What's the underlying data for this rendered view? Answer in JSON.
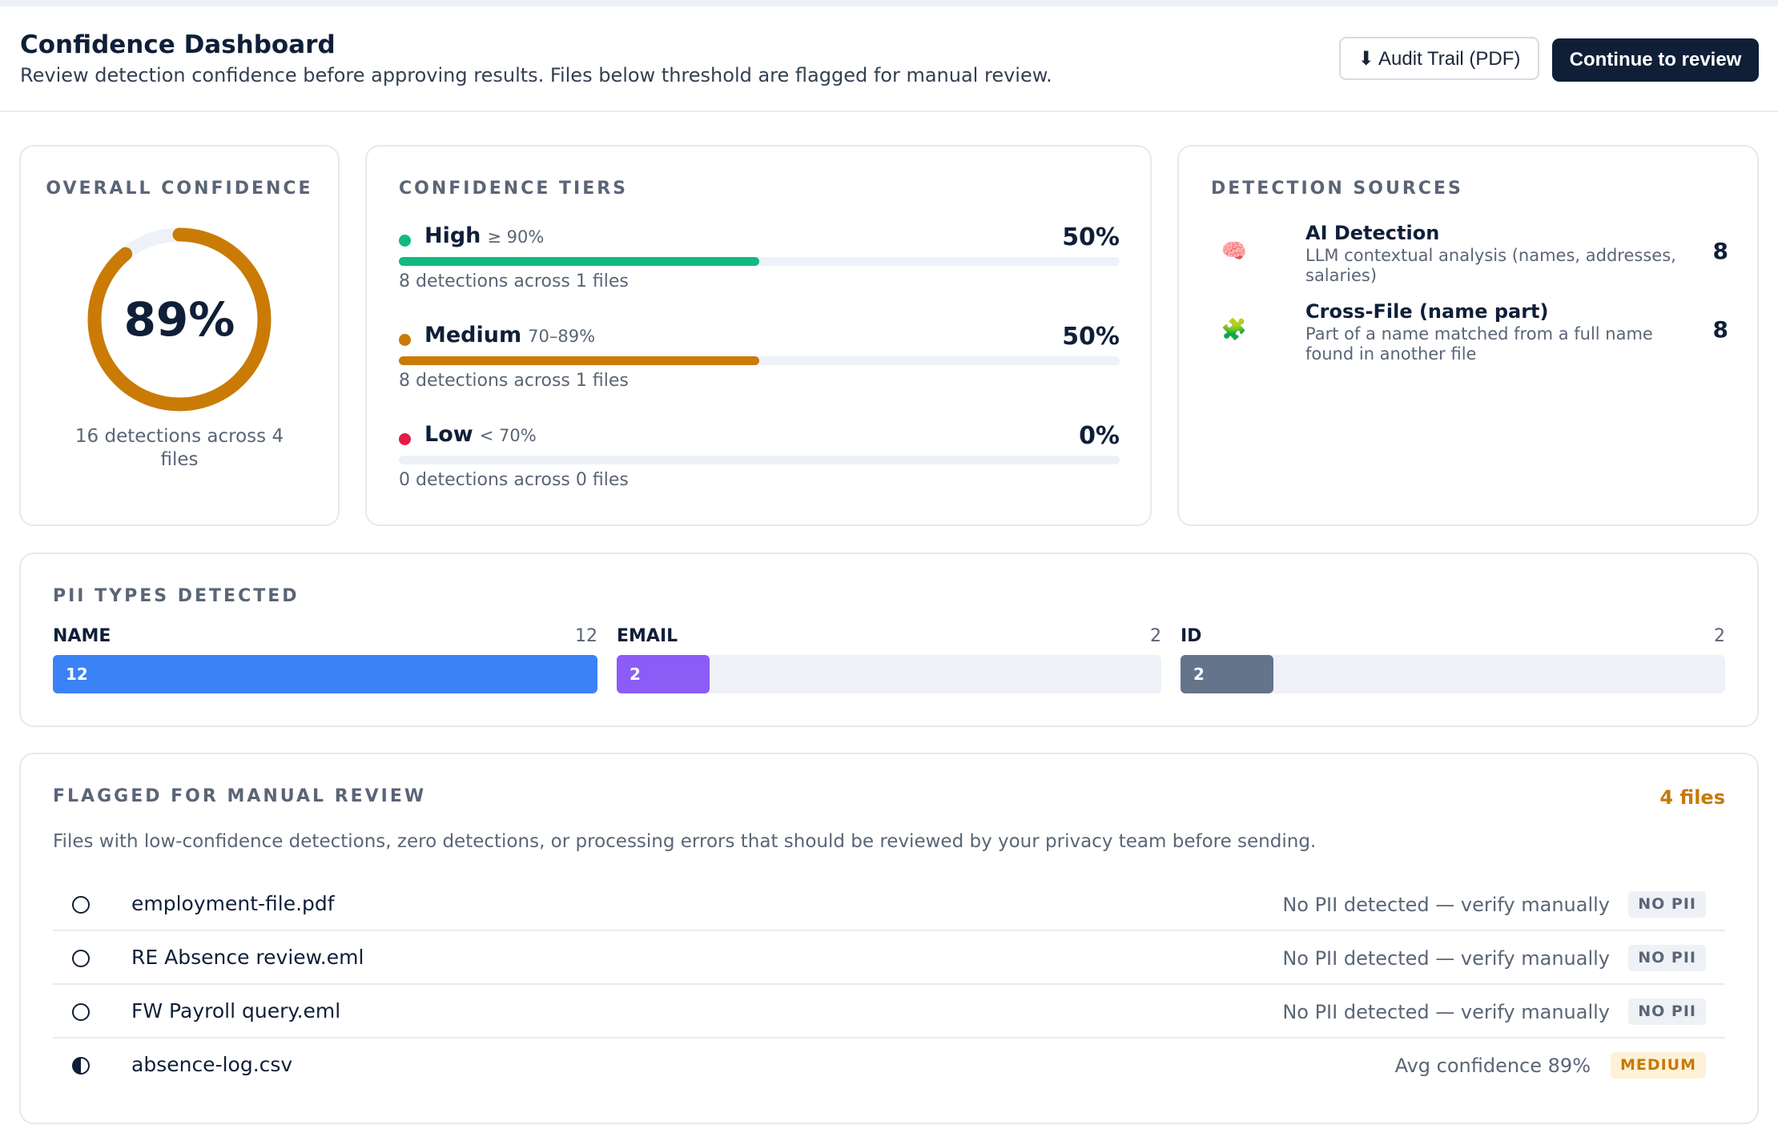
{
  "header": {
    "title": "Confidence Dashboard",
    "subtitle": "Review detection confidence before approving results. Files below threshold are flagged for manual review.",
    "audit_button": "⬇ Audit Trail (PDF)",
    "continue_button": "Continue to review"
  },
  "overall": {
    "label": "OVERALL CONFIDENCE",
    "value": "89%",
    "fraction": 0.89,
    "caption": "16 detections across 4 files",
    "ring_color": "#c97b06",
    "track_color": "#eef1f7"
  },
  "tiers": {
    "label": "CONFIDENCE TIERS",
    "items": [
      {
        "name": "High",
        "range": "≥ 90%",
        "pct": "50%",
        "fraction": 0.5,
        "caption": "8 detections across 1 files",
        "color": "#10b981"
      },
      {
        "name": "Medium",
        "range": "70–89%",
        "pct": "50%",
        "fraction": 0.5,
        "caption": "8 detections across 1 files",
        "color": "#c97b06"
      },
      {
        "name": "Low",
        "range": "< 70%",
        "pct": "0%",
        "fraction": 0,
        "caption": "0 detections across 0 files",
        "color": "#e11d48"
      }
    ]
  },
  "sources": {
    "label": "DETECTION SOURCES",
    "items": [
      {
        "icon": "brain-icon",
        "glyph": "🧠",
        "name": "AI Detection",
        "desc": "LLM contextual analysis (names, addresses, salaries)",
        "count": "8"
      },
      {
        "icon": "puzzle-icon",
        "glyph": "🧩",
        "name": "Cross-File (name part)",
        "desc": "Part of a name matched from a full name found in another file",
        "count": "8"
      }
    ]
  },
  "pii": {
    "label": "PII TYPES DETECTED",
    "items": [
      {
        "name": "NAME",
        "count": "12",
        "fraction": 1.0,
        "color": "#3b82f6"
      },
      {
        "name": "EMAIL",
        "count": "2",
        "fraction": 0.17,
        "color": "#8b5cf6"
      },
      {
        "name": "ID",
        "count": "2",
        "fraction": 0.17,
        "color": "#64748b"
      }
    ]
  },
  "flagged": {
    "label": "FLAGGED FOR MANUAL REVIEW",
    "count": "4 files",
    "desc": "Files with low-confidence detections, zero detections, or processing errors that should be reviewed by your privacy team before sending.",
    "files": [
      {
        "name": "employment-file.pdf",
        "note": "No PII detected — verify manually",
        "badge": "NO PII",
        "status": "empty"
      },
      {
        "name": "RE Absence review.eml",
        "note": "No PII detected — verify manually",
        "badge": "NO PII",
        "status": "empty"
      },
      {
        "name": "FW Payroll query.eml",
        "note": "No PII detected — verify manually",
        "badge": "NO PII",
        "status": "empty"
      },
      {
        "name": "absence-log.csv",
        "note": "Avg confidence 89%",
        "badge": "MEDIUM",
        "status": "half"
      }
    ]
  }
}
